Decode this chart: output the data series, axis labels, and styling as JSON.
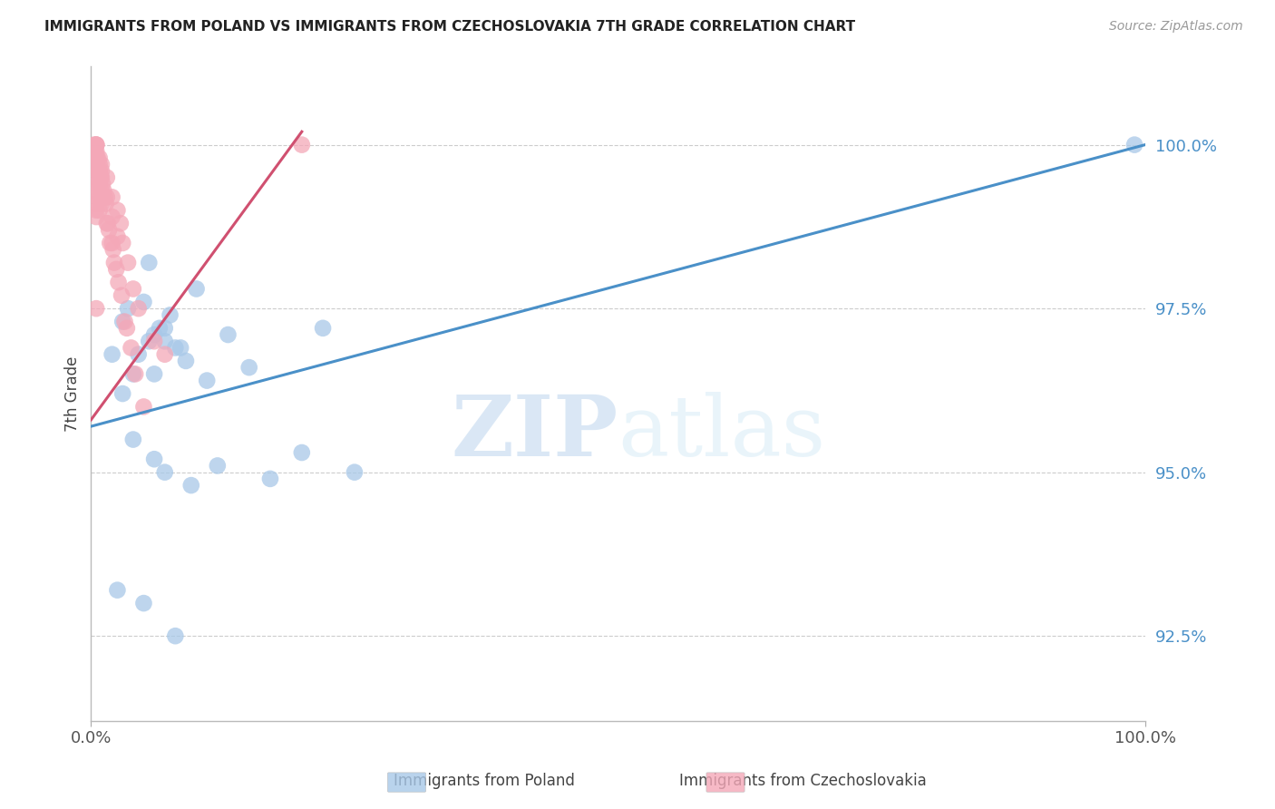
{
  "title": "IMMIGRANTS FROM POLAND VS IMMIGRANTS FROM CZECHOSLOVAKIA 7TH GRADE CORRELATION CHART",
  "source": "Source: ZipAtlas.com",
  "ylabel": "7th Grade",
  "yticks": [
    92.5,
    95.0,
    97.5,
    100.0
  ],
  "ytick_labels": [
    "92.5%",
    "95.0%",
    "97.5%",
    "100.0%"
  ],
  "xlim": [
    0,
    100
  ],
  "ylim": [
    91.2,
    101.2
  ],
  "blue_color": "#A8C8E8",
  "pink_color": "#F4A8B8",
  "blue_line_color": "#4A90C8",
  "pink_line_color": "#D05070",
  "watermark_zip": "ZIP",
  "watermark_atlas": "atlas",
  "legend_label_blue": "Immigrants from Poland",
  "legend_label_pink": "Immigrants from Czechoslovakia",
  "poland_x": [
    2.0,
    3.5,
    5.5,
    7.0,
    3.0,
    4.0,
    6.0,
    8.0,
    5.0,
    6.5,
    7.5,
    9.0,
    10.0,
    11.0,
    13.0,
    15.0,
    3.0,
    4.5,
    5.5,
    6.0,
    7.0,
    8.5,
    4.0,
    6.0,
    7.0,
    9.5,
    12.0,
    17.0,
    20.0,
    25.0,
    2.5,
    5.0,
    8.0,
    22.0,
    99.0
  ],
  "poland_y": [
    96.8,
    97.5,
    98.2,
    97.0,
    97.3,
    96.5,
    97.1,
    96.9,
    97.6,
    97.2,
    97.4,
    96.7,
    97.8,
    96.4,
    97.1,
    96.6,
    96.2,
    96.8,
    97.0,
    96.5,
    97.2,
    96.9,
    95.5,
    95.2,
    95.0,
    94.8,
    95.1,
    94.9,
    95.3,
    95.0,
    93.2,
    93.0,
    92.5,
    97.2,
    100.0
  ],
  "czech_x": [
    0.5,
    0.5,
    0.5,
    0.5,
    0.5,
    0.5,
    0.5,
    0.5,
    0.5,
    0.5,
    0.5,
    0.5,
    0.5,
    0.5,
    0.8,
    0.8,
    0.8,
    0.8,
    0.8,
    1.0,
    1.0,
    1.0,
    1.0,
    1.5,
    1.5,
    1.5,
    2.0,
    2.0,
    2.0,
    2.5,
    2.5,
    2.8,
    3.0,
    3.5,
    4.0,
    4.5,
    1.2,
    0.7,
    0.6,
    0.9,
    1.1,
    1.3,
    1.6,
    1.8,
    2.2,
    2.6,
    3.2,
    0.4,
    0.3,
    0.6,
    0.8,
    1.0,
    1.4,
    1.7,
    2.1,
    2.4,
    2.9,
    3.4,
    3.8,
    4.2,
    5.0,
    6.0,
    7.0,
    20.0,
    0.5
  ],
  "czech_y": [
    100.0,
    100.0,
    100.0,
    99.9,
    99.8,
    99.7,
    99.6,
    99.5,
    99.4,
    99.3,
    99.2,
    99.1,
    99.0,
    98.9,
    99.8,
    99.6,
    99.4,
    99.2,
    99.0,
    99.7,
    99.5,
    99.3,
    99.1,
    99.5,
    99.2,
    98.8,
    99.2,
    98.9,
    98.5,
    99.0,
    98.6,
    98.8,
    98.5,
    98.2,
    97.8,
    97.5,
    99.3,
    99.6,
    99.8,
    99.5,
    99.4,
    99.2,
    98.8,
    98.5,
    98.2,
    97.9,
    97.3,
    99.9,
    100.0,
    99.8,
    99.7,
    99.6,
    99.1,
    98.7,
    98.4,
    98.1,
    97.7,
    97.2,
    96.9,
    96.5,
    96.0,
    97.0,
    96.8,
    100.0,
    97.5
  ],
  "blue_line_x": [
    0,
    100
  ],
  "blue_line_y": [
    95.7,
    100.0
  ],
  "pink_line_x_start": 0.0,
  "pink_line_y_start": 95.8,
  "pink_line_x_end": 20.0,
  "pink_line_y_end": 100.2
}
